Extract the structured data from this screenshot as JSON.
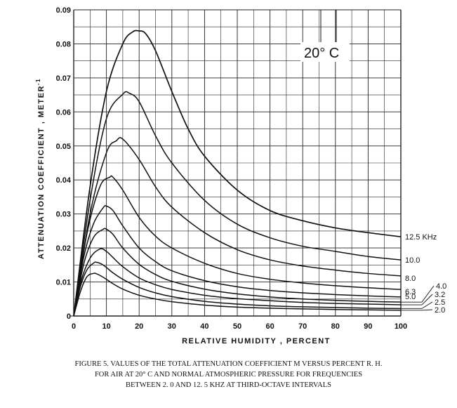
{
  "chart_data": {
    "type": "line",
    "title": "",
    "xlabel": "RELATIVE HUMIDITY , PERCENT",
    "ylabel": "ATTENUATION COEFFICIENT , METER",
    "ylabel_superscript": "-1",
    "annotation": "20° C",
    "xlim": [
      0,
      100
    ],
    "ylim": [
      0,
      0.09
    ],
    "x_ticks": [
      "0",
      "10",
      "20",
      "30",
      "40",
      "50",
      "60",
      "70",
      "80",
      "90",
      "100"
    ],
    "y_ticks": [
      "0",
      "0.01",
      "0.02",
      "0.03",
      "0.04",
      "0.05",
      "0.06",
      "0.07",
      "0.08",
      "0.09"
    ],
    "grid": true,
    "series": [
      {
        "name": "12.5 KHz",
        "x": [
          0,
          5,
          10,
          15,
          18,
          20,
          22,
          25,
          30,
          35,
          40,
          50,
          60,
          70,
          80,
          90,
          100
        ],
        "y": [
          0,
          0.038,
          0.066,
          0.08,
          0.0835,
          0.0838,
          0.083,
          0.078,
          0.066,
          0.055,
          0.047,
          0.037,
          0.031,
          0.028,
          0.0259,
          0.0245,
          0.0233
        ]
      },
      {
        "name": "10.0",
        "x": [
          0,
          5,
          10,
          15,
          17,
          20,
          25,
          30,
          40,
          50,
          60,
          70,
          80,
          90,
          100
        ],
        "y": [
          0,
          0.034,
          0.058,
          0.0652,
          0.0655,
          0.063,
          0.053,
          0.045,
          0.034,
          0.027,
          0.023,
          0.0205,
          0.019,
          0.0175,
          0.0165
        ]
      },
      {
        "name": "8.0",
        "x": [
          0,
          5,
          10,
          13,
          15,
          20,
          25,
          30,
          40,
          50,
          60,
          70,
          80,
          90,
          100
        ],
        "y": [
          0,
          0.03,
          0.048,
          0.0515,
          0.052,
          0.046,
          0.038,
          0.032,
          0.0245,
          0.0195,
          0.0165,
          0.0147,
          0.0135,
          0.0125,
          0.0118
        ]
      },
      {
        "name": "6.3",
        "x": [
          0,
          4,
          8,
          11,
          12,
          15,
          20,
          25,
          30,
          40,
          50,
          60,
          70,
          80,
          90,
          100
        ],
        "y": [
          0,
          0.024,
          0.038,
          0.0408,
          0.0408,
          0.037,
          0.029,
          0.0235,
          0.02,
          0.0155,
          0.0125,
          0.0108,
          0.0097,
          0.0089,
          0.0083,
          0.0078
        ]
      },
      {
        "name": "5.0",
        "x": [
          0,
          3,
          6,
          9,
          10,
          12,
          15,
          20,
          25,
          30,
          40,
          50,
          60,
          70,
          80,
          90,
          100
        ],
        "y": [
          0,
          0.017,
          0.027,
          0.0318,
          0.0323,
          0.031,
          0.0265,
          0.02,
          0.016,
          0.0133,
          0.0104,
          0.0086,
          0.0075,
          0.0068,
          0.0063,
          0.0059,
          0.0056
        ]
      },
      {
        "name": "4.0",
        "x": [
          0,
          3,
          6,
          9,
          10,
          12,
          15,
          20,
          25,
          30,
          40,
          50,
          60,
          70,
          80,
          90,
          100
        ],
        "y": [
          0,
          0.015,
          0.023,
          0.0255,
          0.0255,
          0.024,
          0.02,
          0.0152,
          0.0122,
          0.0102,
          0.0079,
          0.0065,
          0.0056,
          0.005,
          0.0046,
          0.0043,
          0.0041
        ]
      },
      {
        "name": "3.2",
        "x": [
          0,
          2,
          5,
          8,
          10,
          12,
          15,
          20,
          25,
          30,
          40,
          50,
          60,
          70,
          80,
          90,
          100
        ],
        "y": [
          0,
          0.0095,
          0.017,
          0.0197,
          0.019,
          0.0172,
          0.0145,
          0.0112,
          0.0092,
          0.0078,
          0.0061,
          0.0051,
          0.0045,
          0.004,
          0.0037,
          0.0035,
          0.0033
        ]
      },
      {
        "name": "2.5",
        "x": [
          0,
          2,
          4,
          6,
          7,
          9,
          12,
          15,
          20,
          25,
          30,
          40,
          50,
          60,
          70,
          80,
          90,
          100
        ],
        "y": [
          0,
          0.0085,
          0.0135,
          0.0155,
          0.0158,
          0.015,
          0.0127,
          0.0108,
          0.0084,
          0.0068,
          0.0057,
          0.0043,
          0.0035,
          0.003,
          0.0027,
          0.0025,
          0.0023,
          0.0022
        ]
      },
      {
        "name": "2.0",
        "x": [
          0,
          2,
          4,
          6,
          7,
          9,
          12,
          15,
          20,
          25,
          30,
          40,
          50,
          60,
          70,
          80,
          90,
          100
        ],
        "y": [
          0,
          0.007,
          0.0115,
          0.0125,
          0.0124,
          0.0114,
          0.0095,
          0.0079,
          0.0061,
          0.005,
          0.0042,
          0.0032,
          0.0026,
          0.0023,
          0.0021,
          0.0019,
          0.0018,
          0.0017
        ]
      }
    ]
  },
  "caption": {
    "line1": "FIGURE 5.  VALUES OF THE TOTAL ATTENUATION COEFFICIENT M VERSUS PERCENT R. H.",
    "line2": "FOR AIR AT 20° C AND NORMAL ATMOSPHERIC PRESSURE FOR FREQUENCIES",
    "line3": "BETWEEN 2. 0 AND 12. 5 KHZ AT THIRD-OCTAVE INTERVALS"
  }
}
